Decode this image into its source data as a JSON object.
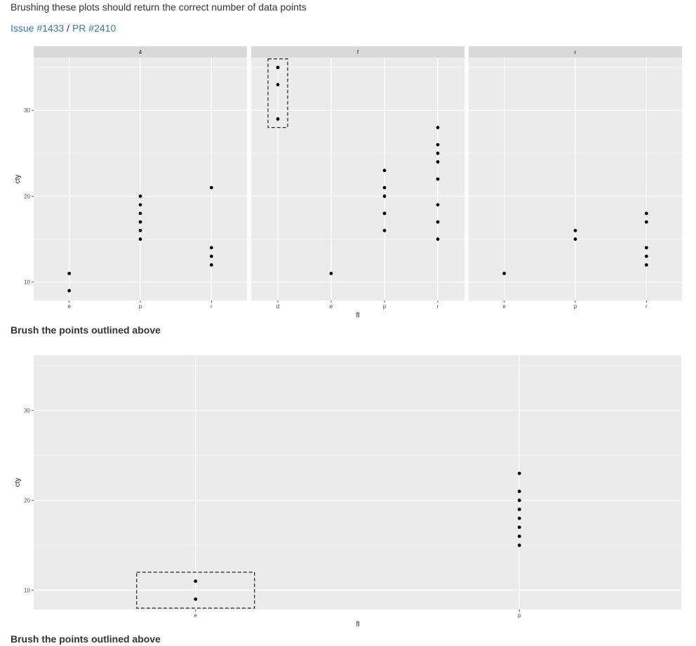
{
  "page": {
    "heading": "Brushing these plots should return the correct number of data points",
    "issue_link": "Issue #1433",
    "separator": " / ",
    "pr_link": "PR #2410",
    "instruction_1": "Brush the points outlined above",
    "instruction_2": "Brush the points outlined above"
  },
  "chart_data": [
    {
      "type": "scatter",
      "xlabel": "fl",
      "ylabel": "cty",
      "ylim": [
        7.85,
        36.15
      ],
      "yticks": [
        10,
        20,
        30
      ],
      "grid": true,
      "facets": [
        {
          "strip": "4",
          "categories": [
            "e",
            "p",
            "r"
          ],
          "points": [
            {
              "x": "e",
              "y": 11
            },
            {
              "x": "e",
              "y": 9
            },
            {
              "x": "p",
              "y": 20
            },
            {
              "x": "p",
              "y": 19
            },
            {
              "x": "p",
              "y": 18
            },
            {
              "x": "p",
              "y": 17
            },
            {
              "x": "p",
              "y": 16
            },
            {
              "x": "p",
              "y": 15
            },
            {
              "x": "r",
              "y": 21
            },
            {
              "x": "r",
              "y": 14
            },
            {
              "x": "r",
              "y": 13
            },
            {
              "x": "r",
              "y": 12
            }
          ]
        },
        {
          "strip": "f",
          "categories": [
            "d",
            "e",
            "p",
            "r"
          ],
          "points": [
            {
              "x": "d",
              "y": 35
            },
            {
              "x": "d",
              "y": 33
            },
            {
              "x": "d",
              "y": 29
            },
            {
              "x": "e",
              "y": 11
            },
            {
              "x": "p",
              "y": 23
            },
            {
              "x": "p",
              "y": 21
            },
            {
              "x": "p",
              "y": 20
            },
            {
              "x": "p",
              "y": 18
            },
            {
              "x": "p",
              "y": 16
            },
            {
              "x": "r",
              "y": 28
            },
            {
              "x": "r",
              "y": 26
            },
            {
              "x": "r",
              "y": 25
            },
            {
              "x": "r",
              "y": 24
            },
            {
              "x": "r",
              "y": 22
            },
            {
              "x": "r",
              "y": 19
            },
            {
              "x": "r",
              "y": 17
            },
            {
              "x": "r",
              "y": 15
            }
          ],
          "outline": {
            "x": "d",
            "y_range": [
              28,
              36
            ]
          }
        },
        {
          "strip": "r",
          "categories": [
            "e",
            "p",
            "r"
          ],
          "points": [
            {
              "x": "e",
              "y": 11
            },
            {
              "x": "p",
              "y": 16
            },
            {
              "x": "p",
              "y": 15
            },
            {
              "x": "r",
              "y": 18
            },
            {
              "x": "r",
              "y": 17
            },
            {
              "x": "r",
              "y": 14
            },
            {
              "x": "r",
              "y": 13
            },
            {
              "x": "r",
              "y": 12
            }
          ]
        }
      ]
    },
    {
      "type": "scatter",
      "xlabel": "fl",
      "ylabel": "cty",
      "ylim": [
        7.85,
        36.15
      ],
      "yticks": [
        10,
        20,
        30
      ],
      "grid": true,
      "categories": [
        "e",
        "p"
      ],
      "points": [
        {
          "x": "e",
          "y": 11
        },
        {
          "x": "e",
          "y": 9
        },
        {
          "x": "p",
          "y": 23
        },
        {
          "x": "p",
          "y": 21
        },
        {
          "x": "p",
          "y": 20
        },
        {
          "x": "p",
          "y": 19
        },
        {
          "x": "p",
          "y": 18
        },
        {
          "x": "p",
          "y": 17
        },
        {
          "x": "p",
          "y": 16
        },
        {
          "x": "p",
          "y": 15
        }
      ],
      "outline": {
        "x": "e",
        "y_range": [
          8,
          12
        ]
      }
    }
  ]
}
